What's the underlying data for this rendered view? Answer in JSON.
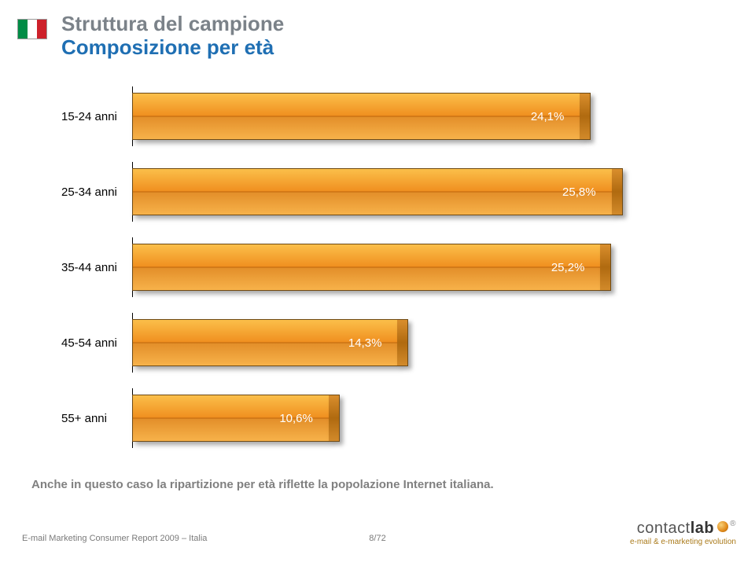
{
  "flag": {
    "colors": [
      "#008c45",
      "#ffffff",
      "#cd212a"
    ]
  },
  "header": {
    "title": "Struttura del campione",
    "subtitle": "Composizione per età",
    "subtitle_color": "#1f6fb3"
  },
  "chart": {
    "type": "bar-horizontal",
    "x_max_percent": 30,
    "bar_fill_gradient": [
      "#fbbf4a",
      "#f09020",
      "#c26a0f",
      "#e38f2a",
      "#f7b24a"
    ],
    "bar_border": "#6f4a14",
    "value_color": "#ffffff",
    "label_fontsize": 15,
    "rows": [
      {
        "label": "15-24 anni",
        "value": 24.1,
        "value_label": "24,1%"
      },
      {
        "label": "25-34 anni",
        "value": 25.8,
        "value_label": "25,8%"
      },
      {
        "label": "35-44 anni",
        "value": 25.2,
        "value_label": "25,2%"
      },
      {
        "label": "45-54 anni",
        "value": 14.3,
        "value_label": "14,3%"
      },
      {
        "label": "55+ anni",
        "value": 10.6,
        "value_label": "10,6%"
      }
    ]
  },
  "caption": "Anche in questo caso la ripartizione per età riflette la popolazione Internet italiana.",
  "footer": {
    "left": "E-mail Marketing Consumer Report 2009 – Italia",
    "center": "8/72"
  },
  "logo": {
    "brand_prefix": "contact",
    "brand_bold": "lab",
    "tagline": "e-mail & e-marketing evolution",
    "tagline_color": "#aa7a1a"
  }
}
